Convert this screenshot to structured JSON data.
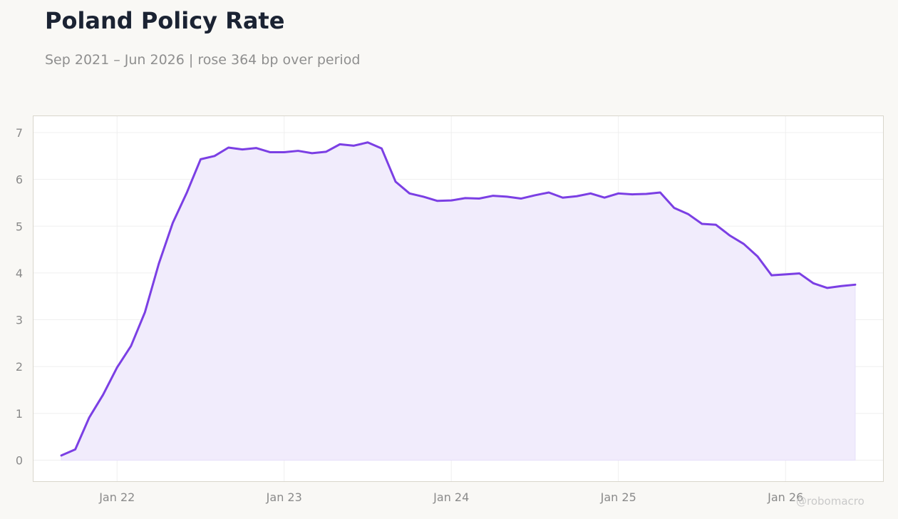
{
  "title": "Poland Policy Rate",
  "subtitle": "Sep 2021 – Jun 2026 | rose 364 bp over period",
  "watermark": "@robomacro",
  "colors": {
    "line": "#7b3fe4",
    "fill": "#f1ecfc",
    "grid": "#efefef",
    "frame": "#d9d6cc",
    "background": "#f9f8f5",
    "plot_background": "#ffffff"
  },
  "chart_data": {
    "type": "area",
    "title": "Poland Policy Rate",
    "subtitle": "Sep 2021 – Jun 2026 | rose 364 bp over period",
    "xlabel": "",
    "ylabel": "",
    "x_ticks": [
      {
        "label": "Jan 22",
        "date": "2022-01"
      },
      {
        "label": "Jan 23",
        "date": "2023-01"
      },
      {
        "label": "Jan 24",
        "date": "2024-01"
      },
      {
        "label": "Jan 25",
        "date": "2025-01"
      },
      {
        "label": "Jan 26",
        "date": "2026-01"
      }
    ],
    "y_ticks": [
      0,
      1,
      2,
      3,
      4,
      5,
      6,
      7
    ],
    "xlim": [
      "2021-07",
      "2026-08"
    ],
    "ylim": [
      -0.45,
      7.35
    ],
    "grid": true,
    "series": [
      {
        "x": [
          "2021-09",
          "2021-10",
          "2021-11",
          "2021-12",
          "2022-01",
          "2022-02",
          "2022-03",
          "2022-04",
          "2022-05",
          "2022-06",
          "2022-07",
          "2022-08",
          "2022-09",
          "2022-10",
          "2022-11",
          "2022-12",
          "2023-01",
          "2023-02",
          "2023-03",
          "2023-04",
          "2023-05",
          "2023-06",
          "2023-07",
          "2023-08",
          "2023-09",
          "2023-10",
          "2023-11",
          "2023-12",
          "2024-01",
          "2024-02",
          "2024-03",
          "2024-04",
          "2024-05",
          "2024-06",
          "2024-07",
          "2024-08",
          "2024-09",
          "2024-10",
          "2024-11",
          "2024-12",
          "2025-01",
          "2025-02",
          "2025-03",
          "2025-04",
          "2025-05",
          "2025-06",
          "2025-07",
          "2025-08",
          "2025-09",
          "2025-10",
          "2025-11",
          "2025-12",
          "2026-01",
          "2026-02",
          "2026-03",
          "2026-04",
          "2026-05",
          "2026-06"
        ],
        "values": [
          0.1,
          0.23,
          0.91,
          1.4,
          1.98,
          2.44,
          3.16,
          4.2,
          5.07,
          5.71,
          6.43,
          6.5,
          6.68,
          6.64,
          6.67,
          6.58,
          6.58,
          6.61,
          6.56,
          6.59,
          6.75,
          6.72,
          6.79,
          6.66,
          5.95,
          5.7,
          5.63,
          5.54,
          5.55,
          5.6,
          5.59,
          5.65,
          5.63,
          5.59,
          5.66,
          5.72,
          5.61,
          5.64,
          5.7,
          5.61,
          5.7,
          5.68,
          5.69,
          5.72,
          5.39,
          5.26,
          5.05,
          5.03,
          4.8,
          4.62,
          4.35,
          3.95,
          3.97,
          3.99,
          3.78,
          3.68,
          3.72,
          3.75
        ]
      }
    ]
  }
}
